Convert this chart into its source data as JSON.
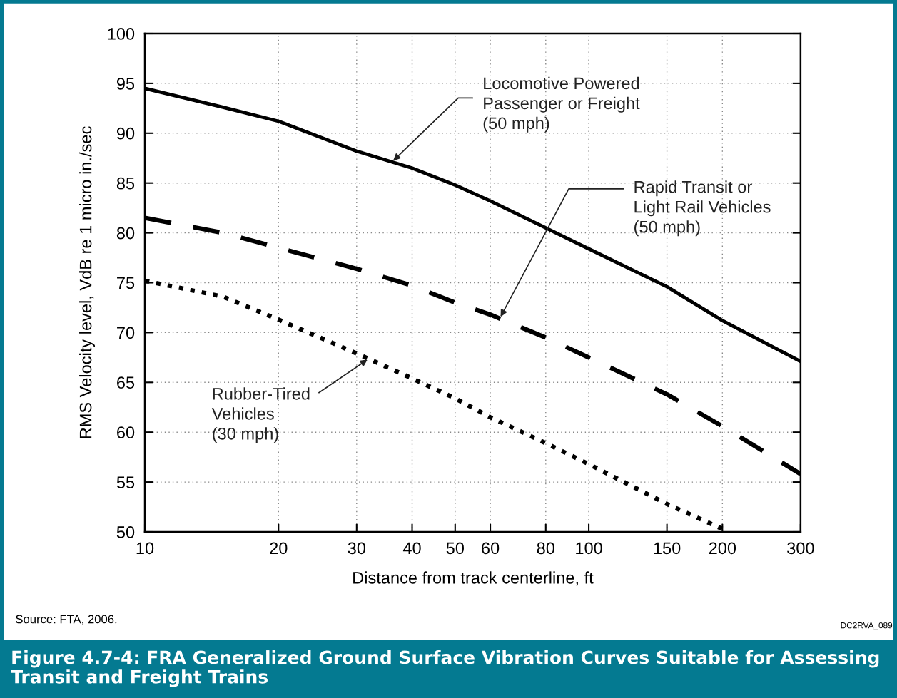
{
  "chart_data": {
    "type": "line",
    "title": "Figure 4.7-4: FRA Generalized Ground Surface Vibration Curves Suitable for Assessing\nTransit and Freight Trains",
    "xlabel": "Distance from track centerline, ft",
    "ylabel": "RMS Velocity level, VdB re 1 micro in./sec",
    "log": "x",
    "xlim": [
      10,
      300
    ],
    "ylim": [
      50,
      100
    ],
    "xticks": [
      10,
      20,
      30,
      40,
      50,
      60,
      80,
      100,
      150,
      200,
      300
    ],
    "yticks": [
      50,
      55,
      60,
      65,
      70,
      75,
      80,
      85,
      90,
      95,
      100
    ],
    "grid": true,
    "series": [
      {
        "color": "#000000",
        "line_style": "solid",
        "x": [
          10,
          15,
          20,
          30,
          40,
          50,
          60,
          80,
          100,
          150,
          200,
          300
        ],
        "values": [
          94.5,
          92.6,
          91.2,
          88.2,
          86.5,
          84.8,
          83.2,
          80.5,
          78.4,
          74.6,
          71.2,
          67.1
        ]
      },
      {
        "color": "#000000",
        "line_style": "dashed",
        "x": [
          10,
          15,
          30,
          40,
          50,
          60,
          80,
          100,
          150,
          200,
          300
        ],
        "values": [
          81.5,
          80.0,
          76.4,
          74.7,
          73.0,
          71.8,
          69.5,
          67.5,
          63.8,
          60.6,
          55.8
        ]
      },
      {
        "color": "#000000",
        "line_style": "dotted",
        "x": [
          10,
          15,
          20,
          30,
          40,
          50,
          60,
          80,
          100,
          150,
          200,
          205
        ],
        "values": [
          75.2,
          73.6,
          71.3,
          67.9,
          65.4,
          63.4,
          61.5,
          58.9,
          56.8,
          52.8,
          50.3,
          50.0
        ]
      }
    ],
    "annotations": [
      {
        "text": "Locomotive Powered\nPassenger or Freight\n(50 mph)",
        "x": 36,
        "y": 87.1
      },
      {
        "text": "Rapid Transit or\nLight Rail Vehicles\n(50 mph)",
        "x": 63,
        "y": 71.4
      },
      {
        "text": "Rubber-Tired\nVehicles\n(30 mph)",
        "x": 32,
        "y": 67.4
      },
      "Source: FTA, 2006.",
      "DC2RVA_089"
    ]
  }
}
